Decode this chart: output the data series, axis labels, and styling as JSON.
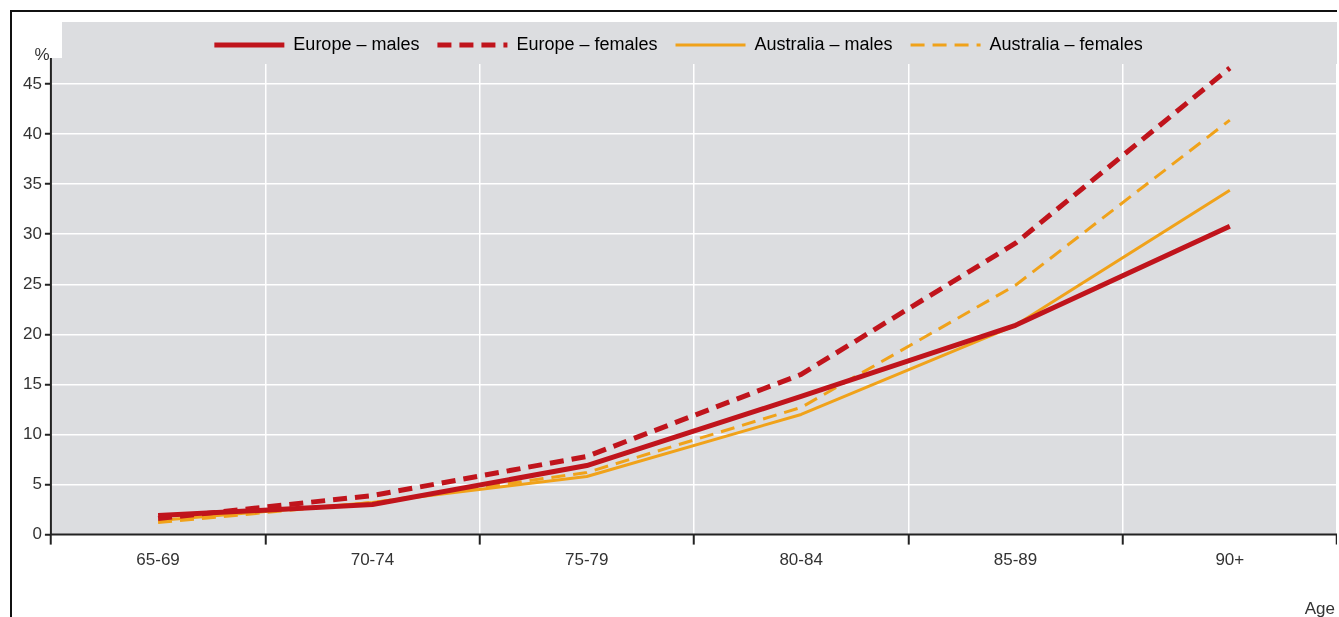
{
  "chart_data": {
    "type": "line",
    "xlabel": "Age",
    "ylabel": "%",
    "categories": [
      "65-69",
      "70-74",
      "75-79",
      "80-84",
      "85-89",
      "90+"
    ],
    "series": [
      {
        "name": "Europe – males",
        "color": "#c0141c",
        "line_style": "solid",
        "values": [
          1.9,
          3.0,
          6.9,
          13.8,
          20.9,
          30.8
        ]
      },
      {
        "name": "Europe – females",
        "color": "#c0141c",
        "line_style": "dashed",
        "values": [
          1.6,
          3.9,
          7.8,
          16.0,
          29.1,
          46.6
        ]
      },
      {
        "name": "Australia – males",
        "color": "#f0a21a",
        "line_style": "solid",
        "values": [
          1.4,
          3.2,
          5.8,
          12.0,
          20.9,
          34.4
        ]
      },
      {
        "name": "Australia – females",
        "color": "#f0a21a",
        "line_style": "dashed",
        "values": [
          1.2,
          3.2,
          6.2,
          12.7,
          24.9,
          41.4
        ]
      }
    ],
    "ylim": [
      0,
      47
    ],
    "yticks": [
      0,
      5,
      10,
      15,
      20,
      25,
      30,
      35,
      40,
      45
    ],
    "grid": true,
    "legend": "top",
    "marker": "none"
  }
}
